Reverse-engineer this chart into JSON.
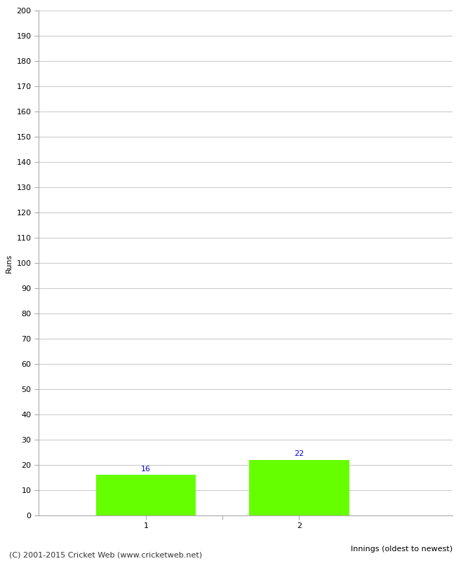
{
  "categories": [
    "1",
    "2"
  ],
  "values": [
    16,
    22
  ],
  "bar_color": "#66ff00",
  "bar_edge_color": "#66ff00",
  "xlabel": "Innings (oldest to newest)",
  "ylabel": "Runs",
  "ylim": [
    0,
    200
  ],
  "ytick_step": 10,
  "label_color": "#0000cc",
  "label_fontsize": 8,
  "axis_fontsize": 8,
  "tick_fontsize": 8,
  "footer_text": "(C) 2001-2015 Cricket Web (www.cricketweb.net)",
  "footer_fontsize": 8,
  "background_color": "#ffffff",
  "grid_color": "#cccccc",
  "bar_width": 0.65
}
